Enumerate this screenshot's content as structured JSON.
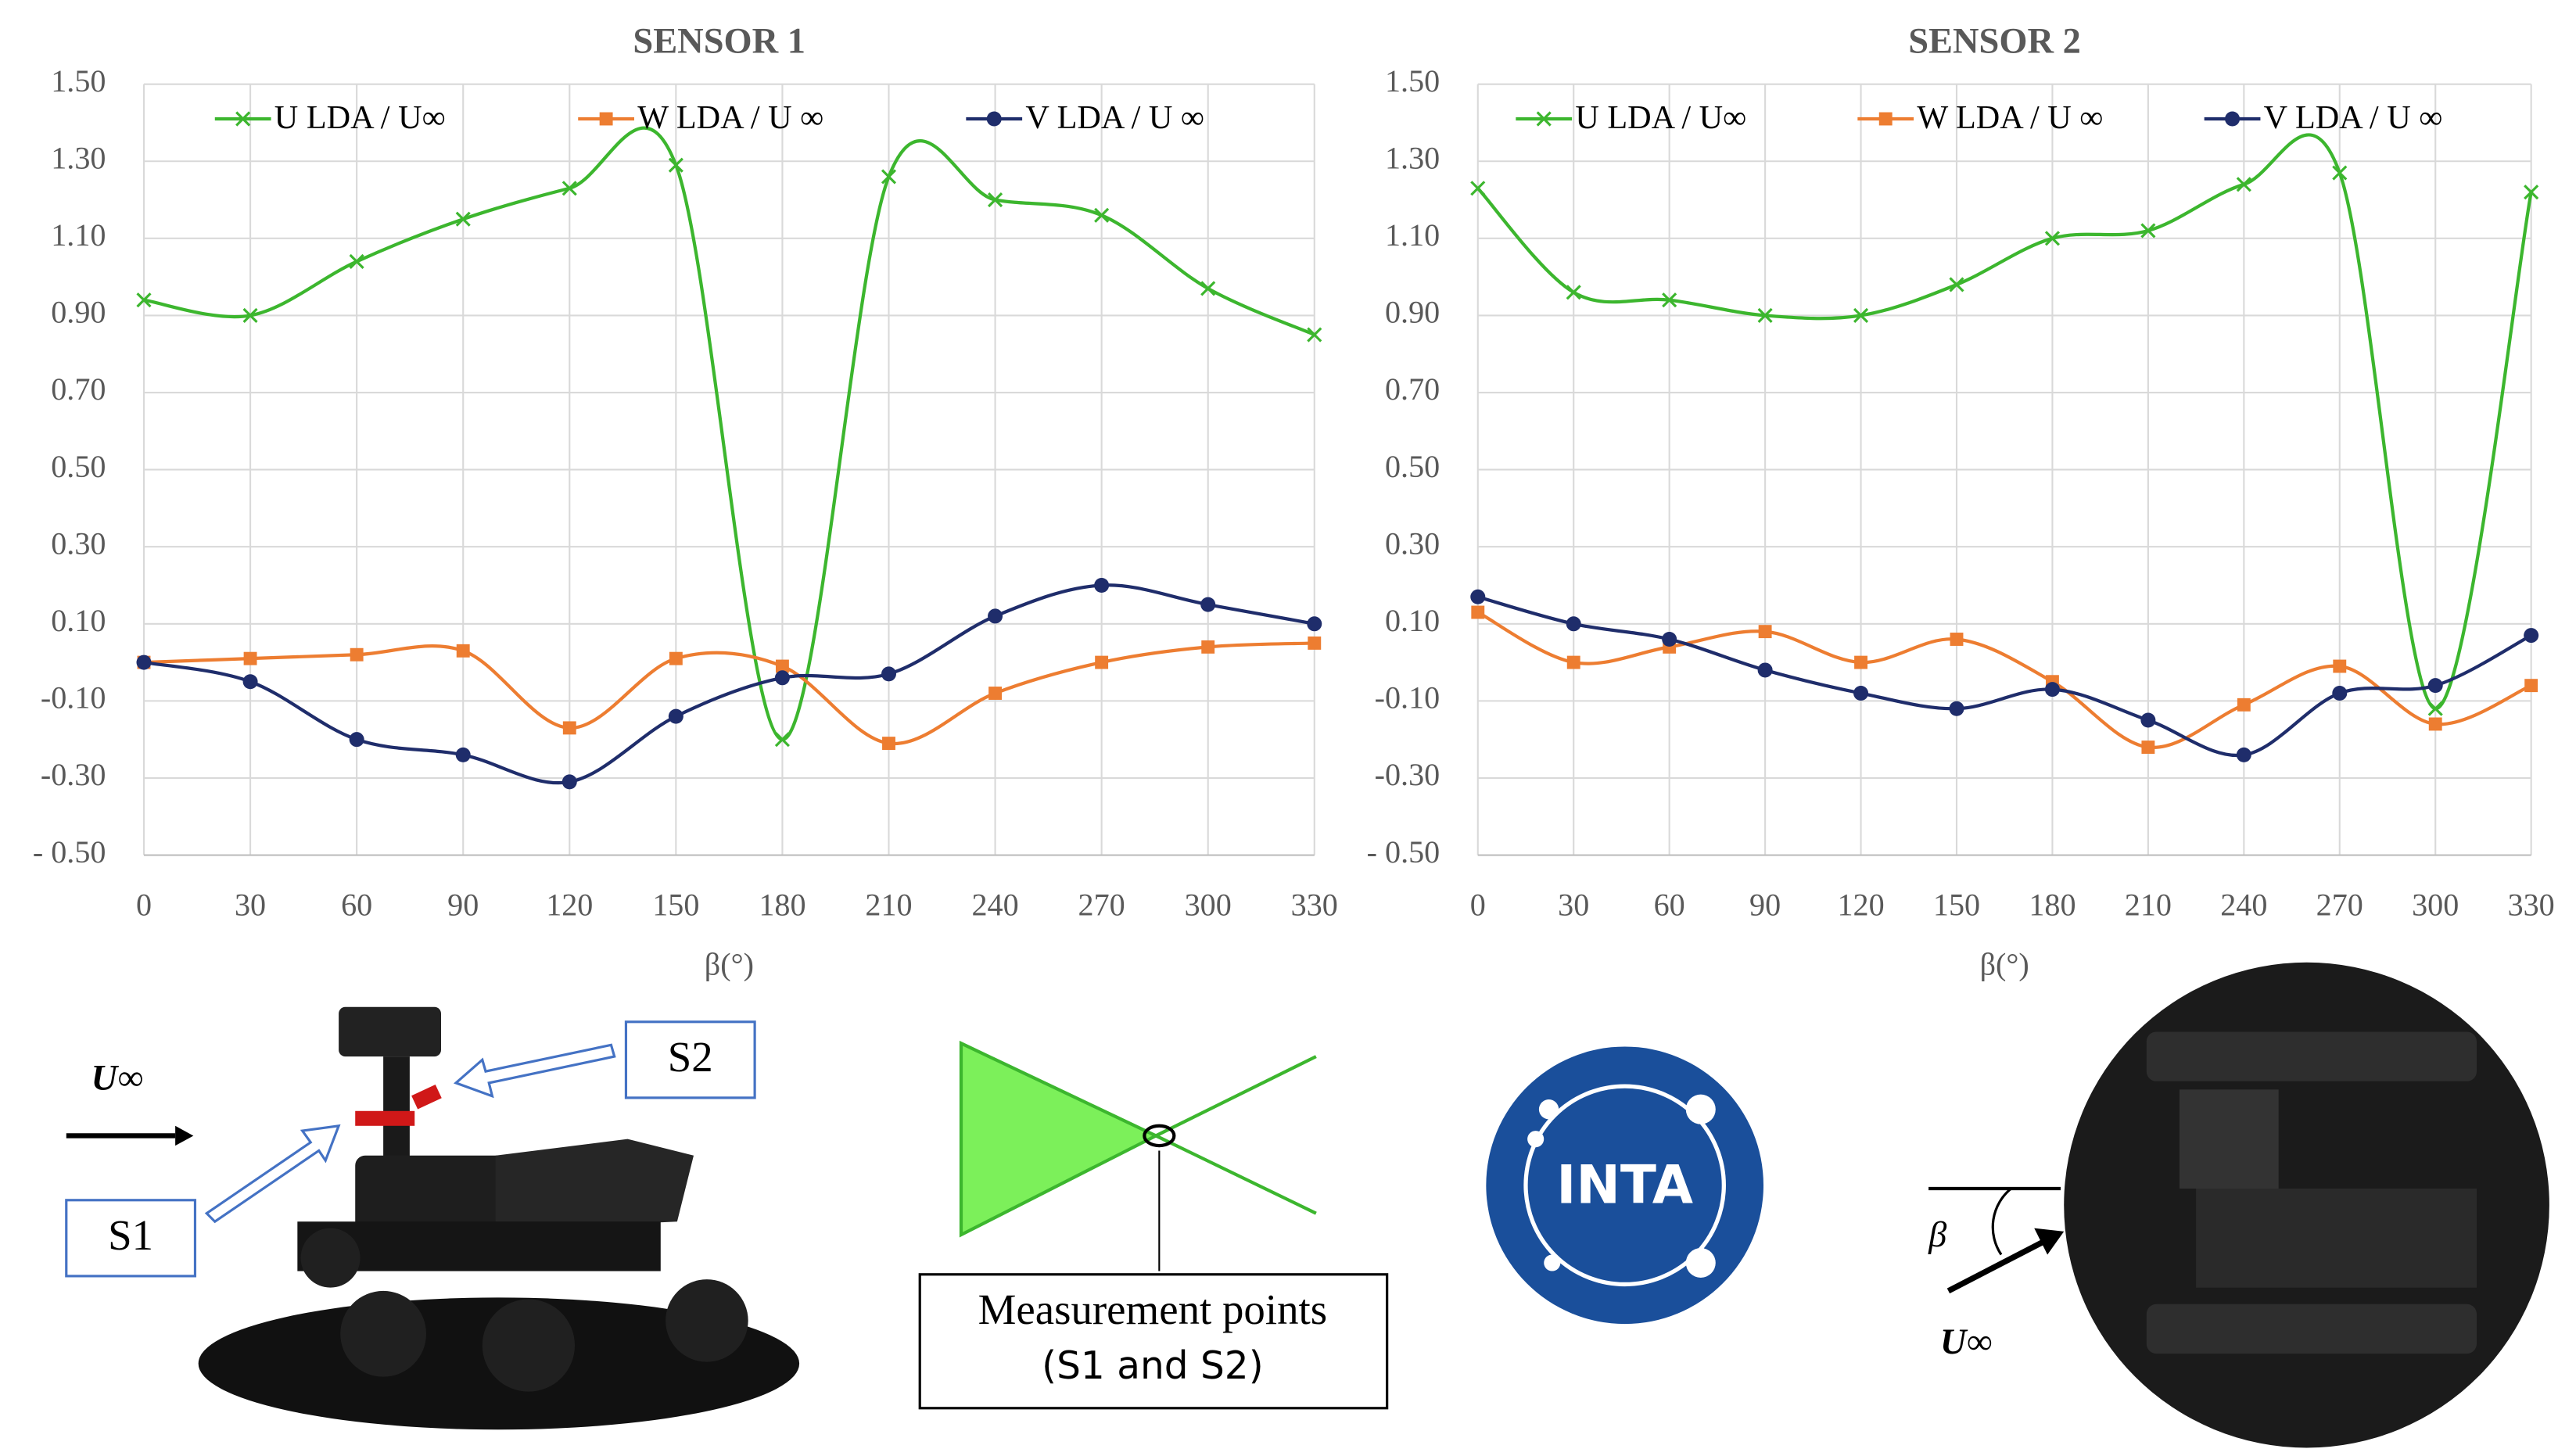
{
  "chart_data": [
    {
      "type": "line",
      "title": "SENSOR 1",
      "x_label": "β(°)",
      "x": [
        0,
        30,
        60,
        90,
        120,
        150,
        180,
        210,
        240,
        270,
        300,
        330
      ],
      "xlim": [
        0,
        330
      ],
      "xticks": [
        0,
        30,
        60,
        90,
        120,
        150,
        180,
        210,
        240,
        270,
        300,
        330
      ],
      "ylim": [
        -0.5,
        1.5
      ],
      "yticks": [
        {
          "value": 1.5,
          "label": "1.50"
        },
        {
          "value": 1.3,
          "label": "1.30"
        },
        {
          "value": 1.1,
          "label": "1.10"
        },
        {
          "value": 0.9,
          "label": "0.90"
        },
        {
          "value": 0.7,
          "label": "0.70"
        },
        {
          "value": 0.5,
          "label": "0.50"
        },
        {
          "value": 0.3,
          "label": "0.30"
        },
        {
          "value": 0.1,
          "label": "0.10"
        },
        {
          "value": -0.1,
          "label": "-0.10"
        },
        {
          "value": -0.3,
          "label": "-0.30"
        },
        {
          "value": -0.5,
          "label": "- 0.50"
        }
      ],
      "grid": true,
      "legend": "top",
      "series": [
        {
          "name": "U LDA  / U∞",
          "color": "#3cb62e",
          "marker": "x",
          "values": [
            0.94,
            0.9,
            1.04,
            1.15,
            1.23,
            1.29,
            -0.2,
            1.26,
            1.2,
            1.16,
            0.97,
            0.85
          ]
        },
        {
          "name": "W LDA  / U ∞",
          "color": "#ed7d31",
          "marker": "square",
          "values": [
            0.0,
            0.01,
            0.02,
            0.03,
            -0.17,
            0.01,
            -0.01,
            -0.21,
            -0.08,
            0.0,
            0.04,
            0.05
          ]
        },
        {
          "name": "V LDA  / U ∞",
          "color": "#1f2d6b",
          "marker": "circle",
          "values": [
            0.0,
            -0.05,
            -0.2,
            -0.24,
            -0.31,
            -0.14,
            -0.04,
            -0.03,
            0.12,
            0.2,
            0.15,
            0.1
          ]
        }
      ]
    },
    {
      "type": "line",
      "title": "SENSOR 2",
      "x_label": "β(°)",
      "x": [
        0,
        30,
        60,
        90,
        120,
        150,
        180,
        210,
        240,
        270,
        300,
        330
      ],
      "xlim": [
        0,
        330
      ],
      "xticks": [
        0,
        30,
        60,
        90,
        120,
        150,
        180,
        210,
        240,
        270,
        300,
        330
      ],
      "ylim": [
        -0.5,
        1.5
      ],
      "yticks": [
        {
          "value": 1.5,
          "label": "1.50"
        },
        {
          "value": 1.3,
          "label": "1.30"
        },
        {
          "value": 1.1,
          "label": "1.10"
        },
        {
          "value": 0.9,
          "label": "0.90"
        },
        {
          "value": 0.7,
          "label": "0.70"
        },
        {
          "value": 0.5,
          "label": "0.50"
        },
        {
          "value": 0.3,
          "label": "0.30"
        },
        {
          "value": 0.1,
          "label": "0.10"
        },
        {
          "value": -0.1,
          "label": "-0.10"
        },
        {
          "value": -0.3,
          "label": "-0.30"
        },
        {
          "value": -0.5,
          "label": "- 0.50"
        }
      ],
      "grid": true,
      "legend": "top",
      "series": [
        {
          "name": "U LDA  / U∞",
          "color": "#3cb62e",
          "marker": "x",
          "values": [
            1.23,
            0.96,
            0.94,
            0.9,
            0.9,
            0.98,
            1.1,
            1.12,
            1.24,
            1.27,
            -0.12,
            1.22
          ]
        },
        {
          "name": "W LDA  / U ∞",
          "color": "#ed7d31",
          "marker": "square",
          "values": [
            0.13,
            0.0,
            0.04,
            0.08,
            0.0,
            0.06,
            -0.05,
            -0.22,
            -0.11,
            -0.01,
            -0.16,
            -0.06
          ]
        },
        {
          "name": "V LDA  / U ∞",
          "color": "#1f2d6b",
          "marker": "circle",
          "values": [
            0.17,
            0.1,
            0.06,
            -0.02,
            -0.08,
            -0.12,
            -0.07,
            -0.15,
            -0.24,
            -0.08,
            -0.06,
            0.07
          ]
        }
      ]
    }
  ],
  "diagram": {
    "u_inf_left": "U∞",
    "s1": "S1",
    "s2": "S2",
    "measurement_line1": "Measurement points",
    "measurement_line2": "(S1 and S2)",
    "logo": "INTA",
    "beta": "β",
    "u_inf_right": "U∞"
  }
}
